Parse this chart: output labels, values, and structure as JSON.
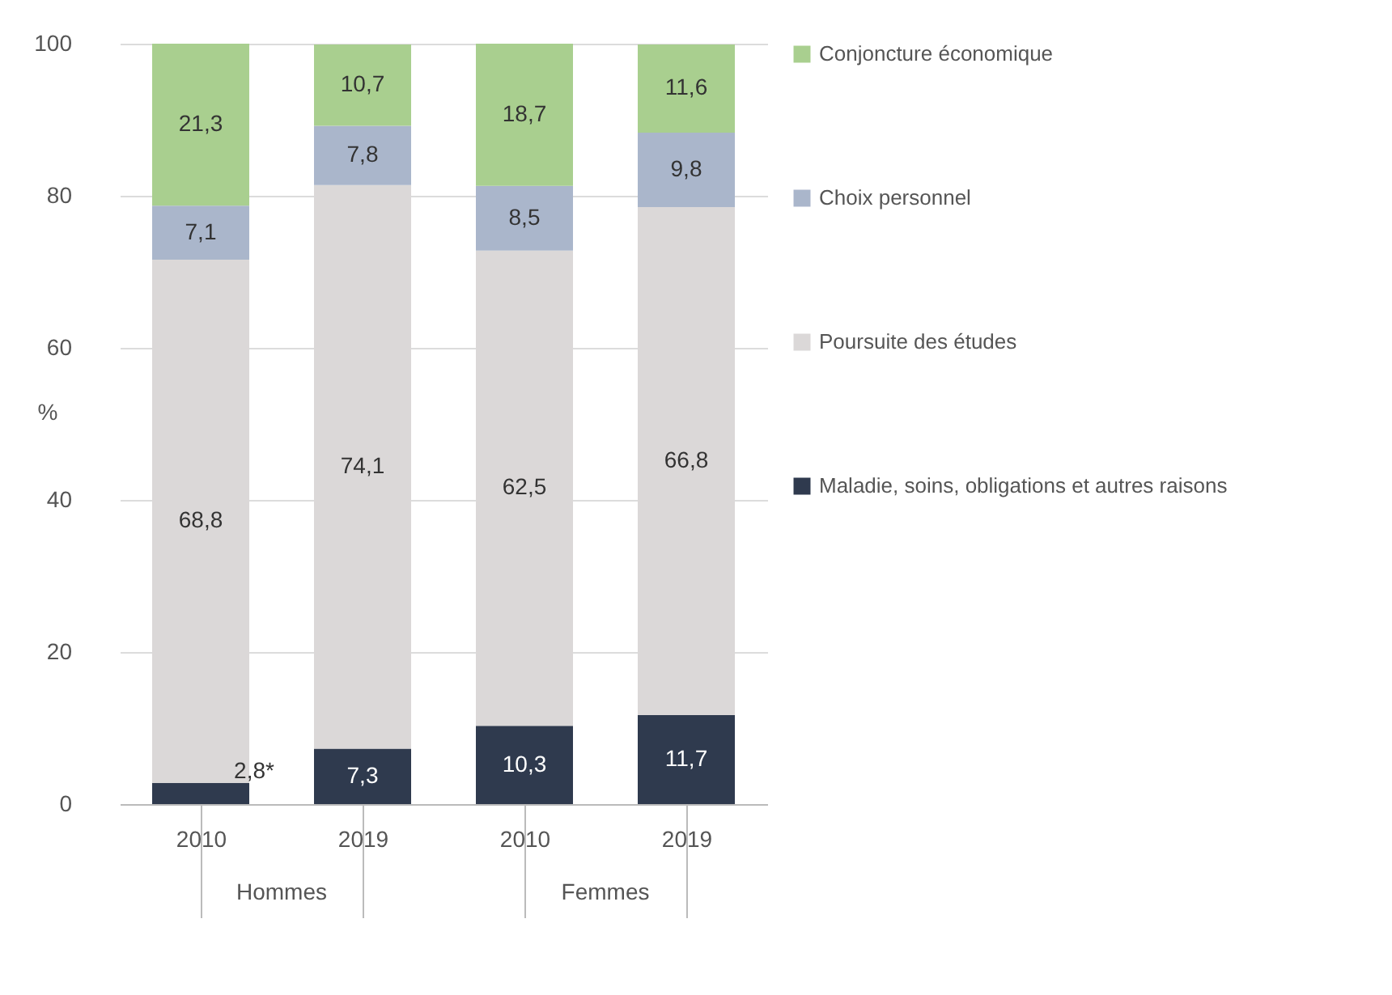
{
  "chart_data": {
    "type": "bar",
    "stacked": true,
    "categories": [
      "2010",
      "2019",
      "2010",
      "2019"
    ],
    "ylabel": "%",
    "ylim": [
      0,
      100
    ],
    "yticks": [
      0,
      20,
      40,
      60,
      80,
      100
    ],
    "grid": "y",
    "legend": "right",
    "annotations": [
      "Hommes",
      "Femmes"
    ],
    "series": [
      {
        "name": "Maladie, soins, obligations et autres raisons",
        "color": "#2f3a4e",
        "values": [
          2.8,
          7.3,
          10.3,
          11.7
        ],
        "value_labels": [
          "2,8*",
          "7,3",
          "10,3",
          "11,7"
        ]
      },
      {
        "name": "Poursuite des études",
        "color": "#dbd8d8",
        "values": [
          68.8,
          74.1,
          62.5,
          66.8
        ],
        "value_labels": [
          "68,8",
          "74,1",
          "62,5",
          "66,8"
        ]
      },
      {
        "name": "Choix personnel",
        "color": "#aab6cb",
        "values": [
          7.1,
          7.8,
          8.5,
          9.8
        ],
        "value_labels": [
          "7,1",
          "7,8",
          "8,5",
          "9,8"
        ]
      },
      {
        "name": "Conjoncture économique",
        "color": "#a9cf8f",
        "values": [
          21.3,
          10.7,
          18.7,
          11.6
        ],
        "value_labels": [
          "21,3",
          "10,7",
          "18,7",
          "11,6"
        ]
      }
    ]
  }
}
